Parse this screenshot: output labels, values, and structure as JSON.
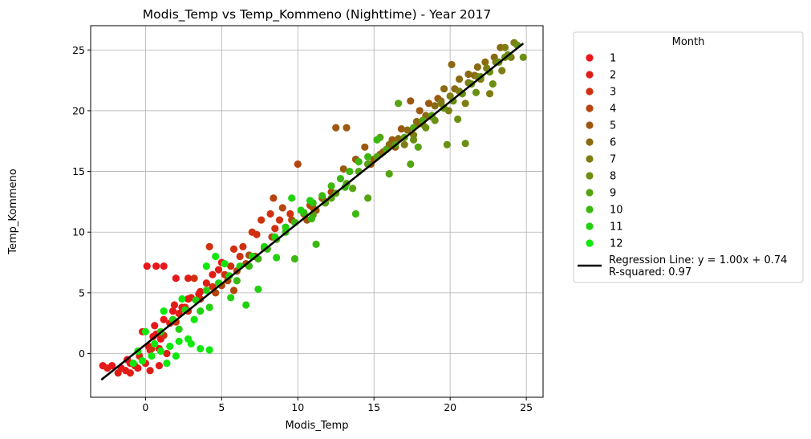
{
  "chart_data": {
    "type": "scatter",
    "title": "Modis_Temp vs Temp_Kommeno (Nighttime) - Year 2017",
    "xlabel": "Modis_Temp",
    "ylabel": "Temp_Kommeno",
    "xlim": [
      -3.6,
      26.1
    ],
    "ylim": [
      -3.6,
      27.0
    ],
    "xticks": [
      0,
      5,
      10,
      15,
      20,
      25
    ],
    "xtick_labels": [
      "0",
      "5",
      "10",
      "15",
      "20",
      "25"
    ],
    "yticks": [
      0,
      5,
      10,
      15,
      20,
      25
    ],
    "ytick_labels": [
      "0",
      "5",
      "10",
      "15",
      "20",
      "25"
    ],
    "grid": true,
    "legend": {
      "title": "Month",
      "placement": "outside-right",
      "regression_label": "Regression Line: y = 1.00x + 0.74",
      "r_squared_label": "R-squared: 0.97"
    },
    "regression": {
      "slope": 1.0,
      "intercept": 0.74,
      "x_range": [
        -2.9,
        24.8
      ],
      "color": "#000000"
    },
    "series": [
      {
        "name": "1",
        "color": "#e8161b",
        "points": [
          [
            -2.8,
            -1.0
          ],
          [
            -2.2,
            -1.0
          ],
          [
            -1.6,
            -1.2
          ],
          [
            -1.0,
            -0.8
          ],
          [
            -0.5,
            -1.2
          ],
          [
            0.0,
            -0.8
          ],
          [
            0.3,
            0.3
          ],
          [
            -0.2,
            1.8
          ],
          [
            0.5,
            1.4
          ],
          [
            1.0,
            1.2
          ],
          [
            0.1,
            7.2
          ],
          [
            0.7,
            7.2
          ],
          [
            1.2,
            7.2
          ],
          [
            2.0,
            6.2
          ],
          [
            2.8,
            4.5
          ],
          [
            1.8,
            3.5
          ],
          [
            1.2,
            2.8
          ],
          [
            0.6,
            2.3
          ],
          [
            -1.2,
            -0.5
          ],
          [
            0.9,
            0.4
          ],
          [
            2.4,
            3.8
          ],
          [
            3.5,
            4.9
          ]
        ]
      },
      {
        "name": "2",
        "color": "#e01d15",
        "points": [
          [
            -2.5,
            -1.2
          ],
          [
            -1.8,
            -1.6
          ],
          [
            -1.3,
            -1.4
          ],
          [
            -0.7,
            -1.0
          ],
          [
            0.3,
            -1.4
          ],
          [
            0.9,
            -1.0
          ],
          [
            1.4,
            0.0
          ],
          [
            0.7,
            1.6
          ],
          [
            1.6,
            2.5
          ],
          [
            2.2,
            3.3
          ],
          [
            2.6,
            3.8
          ],
          [
            3.0,
            4.6
          ],
          [
            4.0,
            5.8
          ],
          [
            4.4,
            6.5
          ],
          [
            5.0,
            7.5
          ],
          [
            2.8,
            6.2
          ],
          [
            1.9,
            4.0
          ],
          [
            0.2,
            0.6
          ],
          [
            -1.0,
            -1.6
          ],
          [
            3.6,
            5.1
          ],
          [
            4.8,
            6.9
          ]
        ]
      },
      {
        "name": "3",
        "color": "#d0300f",
        "points": [
          [
            -0.4,
            -0.2
          ],
          [
            0.4,
            0.4
          ],
          [
            1.2,
            1.5
          ],
          [
            2.0,
            2.6
          ],
          [
            2.8,
            3.5
          ],
          [
            3.6,
            4.5
          ],
          [
            4.4,
            5.5
          ],
          [
            5.2,
            6.5
          ],
          [
            5.6,
            7.2
          ],
          [
            6.2,
            8.0
          ],
          [
            7.0,
            10.0
          ],
          [
            7.6,
            11.0
          ],
          [
            8.2,
            11.5
          ],
          [
            8.8,
            11.0
          ],
          [
            9.5,
            11.5
          ],
          [
            6.4,
            8.8
          ],
          [
            4.2,
            8.8
          ],
          [
            3.2,
            6.2
          ],
          [
            5.8,
            8.6
          ],
          [
            8.5,
            10.3
          ],
          [
            7.3,
            9.8
          ]
        ]
      },
      {
        "name": "4",
        "color": "#b4450d",
        "points": [
          [
            4.6,
            5.0
          ],
          [
            5.0,
            5.6
          ],
          [
            5.4,
            6.0
          ],
          [
            6.0,
            6.8
          ],
          [
            6.6,
            7.4
          ],
          [
            7.2,
            8.0
          ],
          [
            7.8,
            8.7
          ],
          [
            8.3,
            9.6
          ],
          [
            8.4,
            12.8
          ],
          [
            9.0,
            12.0
          ],
          [
            9.6,
            11.0
          ],
          [
            10.0,
            15.6
          ],
          [
            10.4,
            11.5
          ],
          [
            11.0,
            12.0
          ],
          [
            11.6,
            12.8
          ],
          [
            12.2,
            13.3
          ],
          [
            5.8,
            5.2
          ],
          [
            6.8,
            8.1
          ],
          [
            9.2,
            10.4
          ],
          [
            10.8,
            12.2
          ]
        ]
      },
      {
        "name": "5",
        "color": "#9d5810",
        "points": [
          [
            10.6,
            11.0
          ],
          [
            11.2,
            11.8
          ],
          [
            11.8,
            12.5
          ],
          [
            12.5,
            18.6
          ],
          [
            13.2,
            18.6
          ],
          [
            13.8,
            16.0
          ],
          [
            14.4,
            17.0
          ],
          [
            15.0,
            16.0
          ],
          [
            15.6,
            16.6
          ],
          [
            16.2,
            17.6
          ],
          [
            16.8,
            18.5
          ],
          [
            17.4,
            20.8
          ],
          [
            18.0,
            20.0
          ],
          [
            18.6,
            20.6
          ],
          [
            19.2,
            21.0
          ],
          [
            13.0,
            15.2
          ],
          [
            14.8,
            15.6
          ],
          [
            16.4,
            17.0
          ],
          [
            17.9,
            18.9
          ]
        ]
      },
      {
        "name": "6",
        "color": "#8a6a10",
        "points": [
          [
            14.6,
            15.6
          ],
          [
            15.4,
            16.4
          ],
          [
            16.0,
            17.2
          ],
          [
            16.6,
            17.7
          ],
          [
            17.2,
            18.4
          ],
          [
            17.8,
            19.1
          ],
          [
            18.4,
            19.6
          ],
          [
            19.0,
            20.4
          ],
          [
            19.6,
            21.8
          ],
          [
            20.1,
            23.8
          ],
          [
            20.6,
            22.6
          ],
          [
            21.2,
            23.0
          ],
          [
            21.8,
            23.6
          ],
          [
            22.3,
            24.0
          ],
          [
            22.9,
            24.4
          ],
          [
            23.3,
            25.2
          ],
          [
            20.3,
            21.8
          ],
          [
            21.6,
            22.9
          ],
          [
            19.4,
            20.8
          ]
        ]
      },
      {
        "name": "7",
        "color": "#7e7d12",
        "points": [
          [
            17.0,
            17.2
          ],
          [
            17.6,
            18.0
          ],
          [
            18.2,
            18.9
          ],
          [
            18.8,
            19.5
          ],
          [
            19.4,
            20.6
          ],
          [
            20.0,
            21.2
          ],
          [
            20.6,
            21.6
          ],
          [
            21.2,
            22.3
          ],
          [
            21.8,
            22.8
          ],
          [
            22.4,
            23.5
          ],
          [
            23.0,
            24.0
          ],
          [
            23.6,
            25.2
          ],
          [
            24.2,
            25.6
          ],
          [
            23.4,
            23.3
          ],
          [
            22.6,
            21.4
          ],
          [
            21.0,
            20.6
          ],
          [
            24.0,
            24.4
          ],
          [
            19.9,
            20.0
          ],
          [
            22.0,
            22.6
          ]
        ]
      },
      {
        "name": "8",
        "color": "#6a8f12",
        "points": [
          [
            17.6,
            17.6
          ],
          [
            18.4,
            18.6
          ],
          [
            19.0,
            19.2
          ],
          [
            19.6,
            20.2
          ],
          [
            20.2,
            20.8
          ],
          [
            20.8,
            21.4
          ],
          [
            21.4,
            22.2
          ],
          [
            22.0,
            22.8
          ],
          [
            22.6,
            23.2
          ],
          [
            23.2,
            24.0
          ],
          [
            23.8,
            24.6
          ],
          [
            24.4,
            25.4
          ],
          [
            24.8,
            24.4
          ],
          [
            21.0,
            17.3
          ],
          [
            19.8,
            17.2
          ],
          [
            20.5,
            19.3
          ],
          [
            22.8,
            22.2
          ],
          [
            23.6,
            24.4
          ],
          [
            21.7,
            21.5
          ]
        ]
      },
      {
        "name": "9",
        "color": "#55a411",
        "points": [
          [
            11.0,
            11.4
          ],
          [
            11.8,
            12.4
          ],
          [
            12.5,
            13.2
          ],
          [
            13.2,
            14.0
          ],
          [
            14.0,
            15.0
          ],
          [
            14.6,
            15.6
          ],
          [
            15.2,
            16.2
          ],
          [
            15.8,
            16.8
          ],
          [
            16.4,
            17.2
          ],
          [
            17.0,
            17.8
          ],
          [
            17.6,
            18.6
          ],
          [
            18.2,
            19.2
          ],
          [
            18.8,
            19.6
          ],
          [
            14.6,
            12.8
          ],
          [
            16.0,
            14.8
          ],
          [
            17.4,
            15.6
          ],
          [
            15.4,
            17.8
          ],
          [
            16.6,
            20.6
          ],
          [
            13.6,
            13.6
          ],
          [
            12.2,
            12.8
          ],
          [
            17.9,
            17.0
          ]
        ]
      },
      {
        "name": "10",
        "color": "#3ab80f",
        "points": [
          [
            6.0,
            6.0
          ],
          [
            6.8,
            7.2
          ],
          [
            7.4,
            7.8
          ],
          [
            8.0,
            8.6
          ],
          [
            8.6,
            9.4
          ],
          [
            9.2,
            10.0
          ],
          [
            9.8,
            10.8
          ],
          [
            10.4,
            11.6
          ],
          [
            11.0,
            12.4
          ],
          [
            11.6,
            13.0
          ],
          [
            12.2,
            13.8
          ],
          [
            12.8,
            14.4
          ],
          [
            13.4,
            15.0
          ],
          [
            14.0,
            15.8
          ],
          [
            14.6,
            16.2
          ],
          [
            15.2,
            17.6
          ],
          [
            13.8,
            11.5
          ],
          [
            11.2,
            9.0
          ],
          [
            9.8,
            7.8
          ],
          [
            10.9,
            11.1
          ],
          [
            13.1,
            13.7
          ]
        ]
      },
      {
        "name": "11",
        "color": "#22d10e",
        "points": [
          [
            1.0,
            1.8
          ],
          [
            1.8,
            2.8
          ],
          [
            2.6,
            3.6
          ],
          [
            3.3,
            4.4
          ],
          [
            4.0,
            5.2
          ],
          [
            4.8,
            5.8
          ],
          [
            5.5,
            6.4
          ],
          [
            6.2,
            7.2
          ],
          [
            7.0,
            8.0
          ],
          [
            7.8,
            8.8
          ],
          [
            8.5,
            9.6
          ],
          [
            9.2,
            10.4
          ],
          [
            9.6,
            12.8
          ],
          [
            10.2,
            11.8
          ],
          [
            10.8,
            12.6
          ],
          [
            4.2,
            3.8
          ],
          [
            5.6,
            4.6
          ],
          [
            6.6,
            4.0
          ],
          [
            7.4,
            5.3
          ],
          [
            8.6,
            7.9
          ],
          [
            3.6,
            3.5
          ],
          [
            2.2,
            2.0
          ]
        ]
      },
      {
        "name": "12",
        "color": "#0fe80c",
        "points": [
          [
            -0.8,
            -0.8
          ],
          [
            -0.2,
            -0.6
          ],
          [
            0.4,
            -0.2
          ],
          [
            1.0,
            0.2
          ],
          [
            1.6,
            0.6
          ],
          [
            2.2,
            1.0
          ],
          [
            2.8,
            1.2
          ],
          [
            3.6,
            0.4
          ],
          [
            4.2,
            0.3
          ],
          [
            1.4,
            -0.8
          ],
          [
            0.6,
            0.8
          ],
          [
            0.0,
            1.8
          ],
          [
            1.2,
            3.5
          ],
          [
            2.4,
            4.5
          ],
          [
            3.2,
            2.8
          ],
          [
            4.0,
            7.2
          ],
          [
            4.6,
            8.0
          ],
          [
            5.2,
            7.4
          ],
          [
            -0.5,
            0.2
          ],
          [
            2.0,
            -0.2
          ],
          [
            3.0,
            0.8
          ]
        ]
      }
    ]
  }
}
